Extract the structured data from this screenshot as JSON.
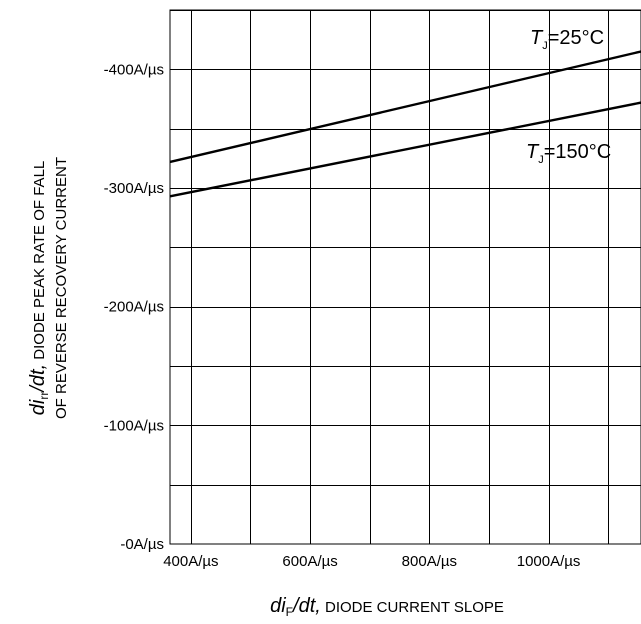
{
  "chart_data": {
    "type": "line",
    "xlabel": {
      "var_main": "di",
      "var_sub": "F",
      "var_tail": "/dt,",
      "desc": " DIODE CURRENT SLOPE"
    },
    "ylabel": {
      "line1_var_main": "di",
      "line1_var_sub": "rr",
      "line1_var_tail": "/dt,",
      "line1_desc": " DIODE PEAK RATE OF FALL",
      "line2": "OF REVERSE RECOVERY CURRENT"
    },
    "x_ticks": [
      {
        "value": 400,
        "label": "400A/µs"
      },
      {
        "value": 600,
        "label": "600A/µs"
      },
      {
        "value": 800,
        "label": "800A/µs"
      },
      {
        "value": 1000,
        "label": "1000A/µs"
      }
    ],
    "y_ticks": [
      {
        "value": 0,
        "label": "-0A/µs"
      },
      {
        "value": 100,
        "label": "-100A/µs"
      },
      {
        "value": 200,
        "label": "-200A/µs"
      },
      {
        "value": 300,
        "label": "-300A/µs"
      },
      {
        "value": 400,
        "label": "-400A/µs"
      }
    ],
    "xlim": [
      365,
      1155
    ],
    "ylim": [
      0,
      450
    ],
    "x_grid_step": 100,
    "y_grid_step": 50,
    "grid": true,
    "series": [
      {
        "temp_var": "T",
        "temp_sub": "J",
        "temp_rest": "=25°C",
        "x": [
          365,
          1155
        ],
        "y": [
          322,
          415
        ]
      },
      {
        "temp_var": "T",
        "temp_sub": "J",
        "temp_rest": "=150°C",
        "x": [
          365,
          1155
        ],
        "y": [
          293,
          372
        ]
      }
    ]
  }
}
